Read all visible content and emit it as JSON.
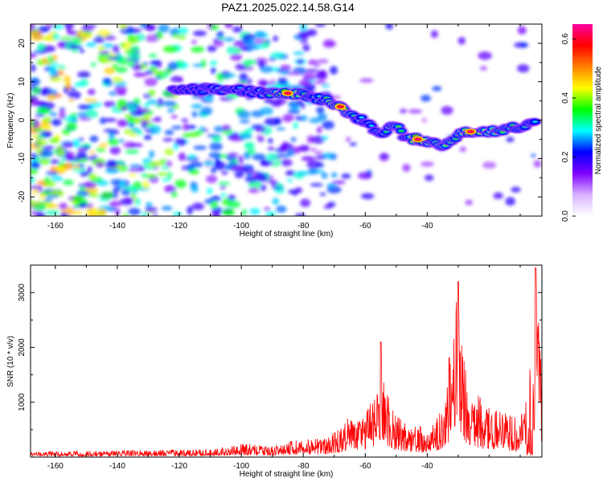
{
  "title": "PAZ1.2025.022.14.58.G14",
  "chart_data": [
    {
      "type": "heatmap",
      "xlabel": "Height of straight line (km)",
      "ylabel": "Frequency (Hz)",
      "xlim": [
        -168,
        -3
      ],
      "ylim": [
        -25,
        25
      ],
      "xticks": [
        -160,
        -140,
        -120,
        -100,
        -80,
        -60,
        -40
      ],
      "yticks": [
        -20,
        -10,
        0,
        10,
        20
      ],
      "colorbar": {
        "label": "Normalized spectral amplitude",
        "range": [
          0,
          0.65
        ],
        "ticks": [
          0.0,
          0.2,
          0.4,
          0.6
        ],
        "colors": [
          "#ffffff",
          "#d9b3ff",
          "#8000ff",
          "#0000ff",
          "#00ffff",
          "#00ff00",
          "#ffff00",
          "#ff8000",
          "#ff0000",
          "#ff00a0"
        ]
      },
      "ridge": [
        {
          "x": -122,
          "y": 8,
          "a": 0.22
        },
        {
          "x": -112,
          "y": 8,
          "a": 0.25
        },
        {
          "x": -105,
          "y": 8,
          "a": 0.3
        },
        {
          "x": -98,
          "y": 7.5,
          "a": 0.25
        },
        {
          "x": -92,
          "y": 7,
          "a": 0.3
        },
        {
          "x": -85,
          "y": 7,
          "a": 0.55
        },
        {
          "x": -80,
          "y": 6.5,
          "a": 0.35
        },
        {
          "x": -74,
          "y": 5.5,
          "a": 0.3
        },
        {
          "x": -68,
          "y": 3.5,
          "a": 0.55
        },
        {
          "x": -63,
          "y": 1,
          "a": 0.3
        },
        {
          "x": -58,
          "y": -2,
          "a": 0.28
        },
        {
          "x": -55,
          "y": -4,
          "a": 0.3
        },
        {
          "x": -50,
          "y": -1,
          "a": 0.4
        },
        {
          "x": -47,
          "y": -5,
          "a": 0.3
        },
        {
          "x": -43,
          "y": -5,
          "a": 0.55
        },
        {
          "x": -38,
          "y": -6,
          "a": 0.35
        },
        {
          "x": -35,
          "y": -6.5,
          "a": 0.4
        },
        {
          "x": -30,
          "y": -4,
          "a": 0.35
        },
        {
          "x": -26,
          "y": -3,
          "a": 0.55
        },
        {
          "x": -20,
          "y": -3,
          "a": 0.4
        },
        {
          "x": -5,
          "y": -1,
          "a": 0.3
        }
      ]
    },
    {
      "type": "line",
      "xlabel": "Height of straight line (km)",
      "ylabel": "SNR (10 * v/v)",
      "xlim": [
        -168,
        -3
      ],
      "ylim": [
        0,
        3500
      ],
      "xticks": [
        -160,
        -140,
        -120,
        -100,
        -80,
        -60,
        -40
      ],
      "yticks": [
        1000,
        2000,
        3000
      ],
      "series": [
        {
          "color": "#ff0000",
          "envelope": [
            {
              "x": -168,
              "y": 100
            },
            {
              "x": -150,
              "y": 120
            },
            {
              "x": -130,
              "y": 130
            },
            {
              "x": -110,
              "y": 150
            },
            {
              "x": -100,
              "y": 250
            },
            {
              "x": -90,
              "y": 200
            },
            {
              "x": -82,
              "y": 320
            },
            {
              "x": -72,
              "y": 350
            },
            {
              "x": -66,
              "y": 700
            },
            {
              "x": -62,
              "y": 800
            },
            {
              "x": -58,
              "y": 1000
            },
            {
              "x": -55,
              "y": 2100
            },
            {
              "x": -52,
              "y": 900
            },
            {
              "x": -48,
              "y": 700
            },
            {
              "x": -45,
              "y": 650
            },
            {
              "x": -40,
              "y": 500
            },
            {
              "x": -36,
              "y": 800
            },
            {
              "x": -33,
              "y": 1800
            },
            {
              "x": -30,
              "y": 3200
            },
            {
              "x": -27,
              "y": 1500
            },
            {
              "x": -22,
              "y": 1000
            },
            {
              "x": -18,
              "y": 900
            },
            {
              "x": -14,
              "y": 800
            },
            {
              "x": -10,
              "y": 700
            },
            {
              "x": -7,
              "y": 1600
            },
            {
              "x": -5,
              "y": 3450
            },
            {
              "x": -3,
              "y": 1500
            }
          ]
        }
      ]
    }
  ]
}
